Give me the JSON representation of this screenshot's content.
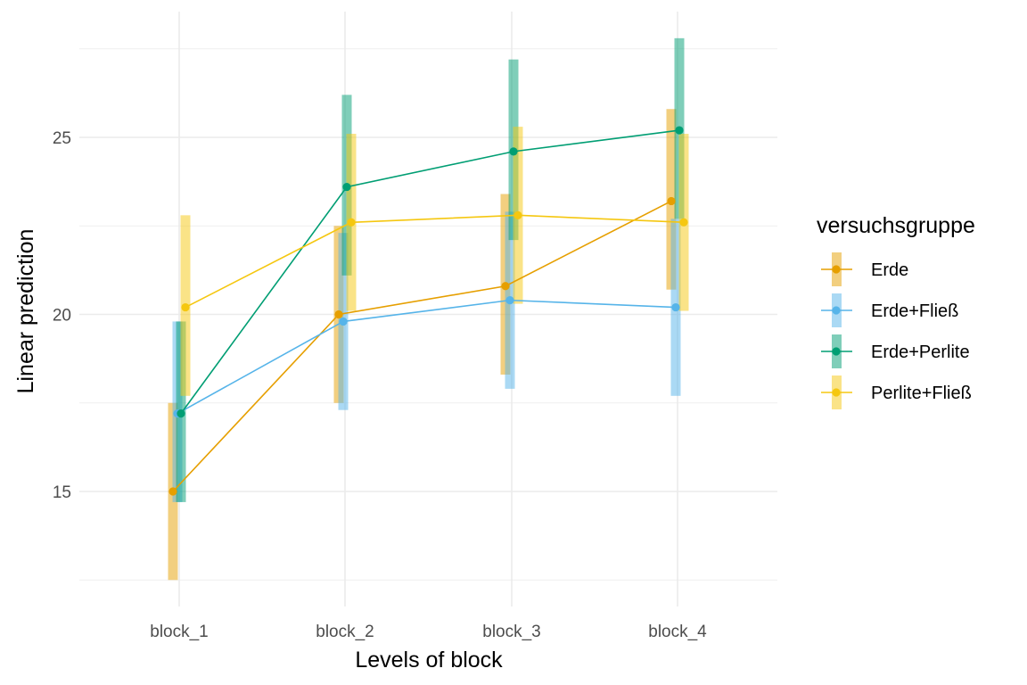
{
  "chart_data": {
    "type": "line",
    "xlabel": "Levels of block",
    "ylabel": "Linear prediction",
    "categories": [
      "block_1",
      "block_2",
      "block_3",
      "block_4"
    ],
    "ylim": [
      12.3,
      28.5
    ],
    "yticks": [
      15,
      20,
      25
    ],
    "grid": true,
    "legend": {
      "title": "versuchsgruppe",
      "position": "right"
    },
    "series": [
      {
        "name": "Erde",
        "color": "#E69F00",
        "values": [
          15.0,
          20.0,
          20.8,
          23.2
        ],
        "ci_low": [
          12.5,
          17.5,
          18.3,
          20.7
        ],
        "ci_high": [
          17.5,
          22.5,
          23.4,
          25.8
        ]
      },
      {
        "name": "Erde+Fließ",
        "color": "#56B4E9",
        "values": [
          17.2,
          19.8,
          20.4,
          20.2
        ],
        "ci_low": [
          14.7,
          17.3,
          17.9,
          17.7
        ],
        "ci_high": [
          19.8,
          22.3,
          22.9,
          22.7
        ]
      },
      {
        "name": "Erde+Perlite",
        "color": "#009E73",
        "values": [
          17.2,
          23.6,
          24.6,
          25.2
        ],
        "ci_low": [
          14.7,
          21.1,
          22.1,
          22.7
        ],
        "ci_high": [
          19.8,
          26.2,
          27.2,
          27.8
        ]
      },
      {
        "name": "Perlite+Fließ",
        "color": "#F5C710",
        "values": [
          20.2,
          22.6,
          22.8,
          22.6
        ],
        "ci_low": [
          17.7,
          20.1,
          20.3,
          20.1
        ],
        "ci_high": [
          22.8,
          25.1,
          25.3,
          25.1
        ]
      }
    ]
  }
}
